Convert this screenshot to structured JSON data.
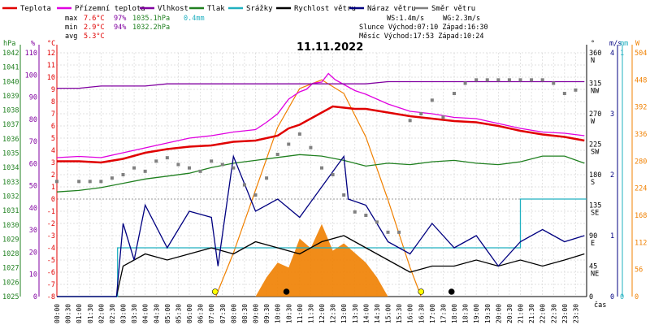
{
  "chart_data": {
    "type": "line",
    "title": "11.11.2022",
    "legend": [
      {
        "name": "Teplota",
        "color": "#e00000"
      },
      {
        "name": "Přízemní teplota",
        "color": "#e000e0"
      },
      {
        "name": "Vlhkost",
        "color": "#8000a0"
      },
      {
        "name": "Tlak",
        "color": "#208020"
      },
      {
        "name": "Srážky",
        "color": "#20b0c0"
      },
      {
        "name": "Rychlost větru",
        "color": "#000000"
      },
      {
        "name": "Náraz větru",
        "color": "#000080"
      },
      {
        "name": "Směr větru",
        "color": "#808080"
      }
    ],
    "stats": {
      "max_label": "max",
      "max_temp": "7.6°C",
      "max_hum": "97%",
      "max_press": "1035.1hPa",
      "precip": "0.4mm",
      "min_label": "min",
      "min_temp": "2.9°C",
      "min_hum": "94%",
      "min_press": "1032.2hPa",
      "avg_label": "avg",
      "avg_temp": "5.3°C"
    },
    "info": {
      "wind": "WS:1.4m/s",
      "gust": "WG:2.3m/s",
      "sun": "Slunce Východ:07:10  Západ:16:30",
      "moon": "Měsíc  Východ:17:53  Západ:10:24"
    },
    "axes": {
      "hpa_label": "hPa",
      "pct_label": "%",
      "degc_label": "°C",
      "dir_label": "°",
      "ms_label": "m/s",
      "mm_label": "mm",
      "w_label": "W",
      "x_label": "čas",
      "hpa_ticks": [
        "1042",
        "1041",
        "1040",
        "1039",
        "1038",
        "1037",
        "1036",
        "1035",
        "1034",
        "1033",
        "1032",
        "1031",
        "1030",
        "1029",
        "1028",
        "1027",
        "1026",
        "1025"
      ],
      "pct_ticks": [
        "110",
        "100",
        "90",
        "80",
        "70",
        "60",
        "50",
        "40",
        "30",
        "20",
        "10",
        "0"
      ],
      "degc_ticks": [
        "12",
        "11",
        "10",
        "9",
        "8",
        "7",
        "6",
        "5",
        "4",
        "3",
        "2",
        "1",
        "0",
        "-1",
        "-2",
        "-3",
        "-4",
        "-5",
        "-6",
        "-7",
        "-8"
      ],
      "dir_ticks": [
        {
          "v": "360",
          "l": "N"
        },
        {
          "v": "315",
          "l": "NW"
        },
        {
          "v": "270",
          "l": "W"
        },
        {
          "v": "225",
          "l": "SW"
        },
        {
          "v": "180",
          "l": "S"
        },
        {
          "v": "135",
          "l": "SE"
        },
        {
          "v": "90",
          "l": "E"
        },
        {
          "v": "45",
          "l": "NE"
        },
        {
          "v": "0",
          "l": ""
        }
      ],
      "ms_ticks": [
        "4",
        "3",
        "2",
        "1",
        "0"
      ],
      "mm_ticks": [
        "1",
        "0"
      ],
      "w_ticks": [
        "504",
        "448",
        "392",
        "336",
        "280",
        "224",
        "168",
        "112",
        "56",
        "0"
      ],
      "time_ticks": [
        "00:00",
        "00:30",
        "01:00",
        "01:30",
        "02:00",
        "02:30",
        "03:00",
        "03:30",
        "04:00",
        "04:30",
        "05:00",
        "05:30",
        "06:00",
        "06:30",
        "07:00",
        "07:30",
        "08:00",
        "08:30",
        "09:00",
        "09:30",
        "10:00",
        "10:30",
        "11:00",
        "11:30",
        "12:00",
        "12:30",
        "13:00",
        "13:30",
        "14:00",
        "14:30",
        "15:00",
        "15:30",
        "16:00",
        "16:30",
        "17:00",
        "17:30",
        "18:00",
        "18:30",
        "19:00",
        "19:30",
        "20:00",
        "20:30",
        "21:00",
        "21:30",
        "22:00",
        "22:30",
        "23:00",
        "23:30"
      ]
    },
    "xlim_hours": [
      0,
      24
    ],
    "temp_ylim": [
      -8,
      12
    ],
    "series": [
      {
        "name": "Teplota",
        "unit": "°C",
        "color": "#e00000",
        "x": [
          0,
          1,
          2,
          3,
          4,
          5,
          6,
          7,
          8,
          9,
          10,
          10.5,
          11,
          11.5,
          12,
          12.5,
          13,
          13.5,
          14,
          15,
          16,
          17,
          18,
          19,
          20,
          21,
          22,
          23,
          23.9
        ],
        "y": [
          3.1,
          3.1,
          3.0,
          3.3,
          3.8,
          4.1,
          4.3,
          4.4,
          4.7,
          4.8,
          5.2,
          5.8,
          6.1,
          6.6,
          7.1,
          7.6,
          7.5,
          7.4,
          7.4,
          7.1,
          6.8,
          6.6,
          6.4,
          6.3,
          6.0,
          5.6,
          5.3,
          5.1,
          4.8
        ]
      },
      {
        "name": "Přízemní teplota",
        "unit": "°C",
        "color": "#e000e0",
        "x": [
          0,
          1,
          2,
          3,
          4,
          5,
          6,
          7,
          8,
          9,
          9.5,
          10,
          10.5,
          11,
          11.3,
          11.6,
          12,
          12.3,
          12.6,
          13,
          13.5,
          14,
          15,
          16,
          17,
          18,
          19,
          20,
          21,
          22,
          23,
          23.9
        ],
        "y": [
          3.4,
          3.5,
          3.4,
          3.8,
          4.2,
          4.6,
          5.0,
          5.2,
          5.5,
          5.7,
          6.3,
          7.0,
          8.2,
          8.8,
          9.0,
          9.5,
          9.6,
          10.3,
          9.8,
          9.4,
          8.9,
          8.6,
          7.8,
          7.2,
          7.0,
          6.7,
          6.6,
          6.2,
          5.8,
          5.5,
          5.4,
          5.2
        ]
      },
      {
        "name": "Vlhkost",
        "unit": "%",
        "color": "#8000a0",
        "x": [
          0,
          1,
          2,
          3,
          4,
          5,
          6,
          7,
          8,
          9,
          10,
          11,
          12,
          13,
          14,
          15,
          16,
          17,
          18,
          19,
          20,
          21,
          22,
          23,
          23.9
        ],
        "y": [
          94,
          94,
          95,
          95,
          95,
          96,
          96,
          96,
          96,
          96,
          96,
          96,
          96,
          96,
          96,
          97,
          97,
          97,
          97,
          97,
          97,
          97,
          97,
          97,
          97
        ]
      },
      {
        "name": "Tlak",
        "unit": "hPa",
        "color": "#208020",
        "x": [
          0,
          1,
          2,
          3,
          4,
          5,
          6,
          7,
          8,
          9,
          10,
          11,
          12,
          13,
          14,
          15,
          16,
          17,
          18,
          19,
          20,
          21,
          22,
          23,
          23.9
        ],
        "y": [
          1032.3,
          1032.4,
          1032.6,
          1032.9,
          1033.2,
          1033.4,
          1033.6,
          1034.0,
          1034.3,
          1034.5,
          1034.7,
          1034.9,
          1034.8,
          1034.5,
          1034.1,
          1034.3,
          1034.2,
          1034.4,
          1034.5,
          1034.3,
          1034.2,
          1034.4,
          1034.8,
          1034.8,
          1034.3
        ]
      },
      {
        "name": "Srážky",
        "unit": "mm",
        "color": "#20b0c0",
        "x": [
          0,
          2.75,
          2.75,
          21.0,
          21.0,
          24
        ],
        "y": [
          0,
          0,
          0.2,
          0.2,
          0.4,
          0.4
        ]
      },
      {
        "name": "Rychlost větru",
        "unit": "m/s",
        "color": "#000000",
        "x": [
          0,
          2.7,
          3,
          4,
          5,
          6,
          7,
          8,
          9,
          10,
          11,
          12,
          13,
          14,
          15,
          16,
          17,
          18,
          19,
          20,
          21,
          22,
          23,
          23.9
        ],
        "y": [
          0,
          0,
          0.5,
          0.7,
          0.6,
          0.7,
          0.8,
          0.7,
          0.9,
          0.8,
          0.7,
          0.9,
          1.0,
          0.8,
          0.6,
          0.4,
          0.5,
          0.5,
          0.6,
          0.5,
          0.6,
          0.5,
          0.6,
          0.7
        ]
      },
      {
        "name": "Náraz větru",
        "unit": "m/s",
        "color": "#000080",
        "x": [
          0,
          2.7,
          3,
          3.5,
          4,
          5,
          6,
          7,
          7.3,
          8,
          9,
          10,
          11,
          12,
          13,
          13.2,
          14,
          15,
          16,
          17,
          18,
          19,
          20,
          21,
          22,
          23,
          23.9
        ],
        "y": [
          0,
          0,
          1.2,
          0.6,
          1.5,
          0.8,
          1.4,
          1.3,
          0.5,
          2.3,
          1.4,
          1.6,
          1.3,
          1.8,
          2.3,
          1.6,
          1.5,
          0.9,
          0.7,
          1.2,
          0.8,
          1.0,
          0.5,
          0.9,
          1.1,
          0.9,
          1.0
        ]
      },
      {
        "name": "Slunce",
        "unit": "W",
        "color": "#f08000",
        "x": [
          7.2,
          8,
          9,
          10,
          11,
          12,
          13,
          14,
          15,
          16,
          16.5
        ],
        "y": [
          0,
          90,
          220,
          350,
          430,
          448,
          420,
          330,
          200,
          60,
          0
        ]
      }
    ],
    "wind_dir": {
      "x": [
        0,
        1,
        1.5,
        2,
        2.5,
        3,
        3.5,
        4,
        4.5,
        5,
        5.5,
        6,
        6.5,
        7,
        7.5,
        8,
        8.5,
        9,
        9.5,
        10,
        10.5,
        11,
        11.5,
        12,
        12.5,
        13,
        13.5,
        14,
        14.5,
        15,
        15.5,
        16,
        16.5,
        17,
        17.5,
        18,
        18.5,
        19,
        19.5,
        20,
        20.5,
        21,
        21.5,
        22,
        22.5,
        23,
        23.5
      ],
      "y": [
        170,
        170,
        170,
        170,
        175,
        180,
        190,
        185,
        200,
        205,
        195,
        190,
        185,
        200,
        195,
        190,
        165,
        150,
        175,
        210,
        225,
        240,
        220,
        190,
        180,
        150,
        125,
        120,
        110,
        95,
        95,
        260,
        270,
        290,
        265,
        300,
        315,
        320,
        320,
        320,
        320,
        320,
        320,
        320,
        315,
        300,
        305
      ]
    },
    "markers": [
      {
        "type": "sunrise",
        "x": 7.17,
        "color": "#ffff00"
      },
      {
        "type": "moonset",
        "x": 10.4,
        "color": "#000000"
      },
      {
        "type": "sunset",
        "x": 16.5,
        "color": "#ffff00"
      },
      {
        "type": "moonrise",
        "x": 17.88,
        "color": "#000000"
      }
    ]
  }
}
